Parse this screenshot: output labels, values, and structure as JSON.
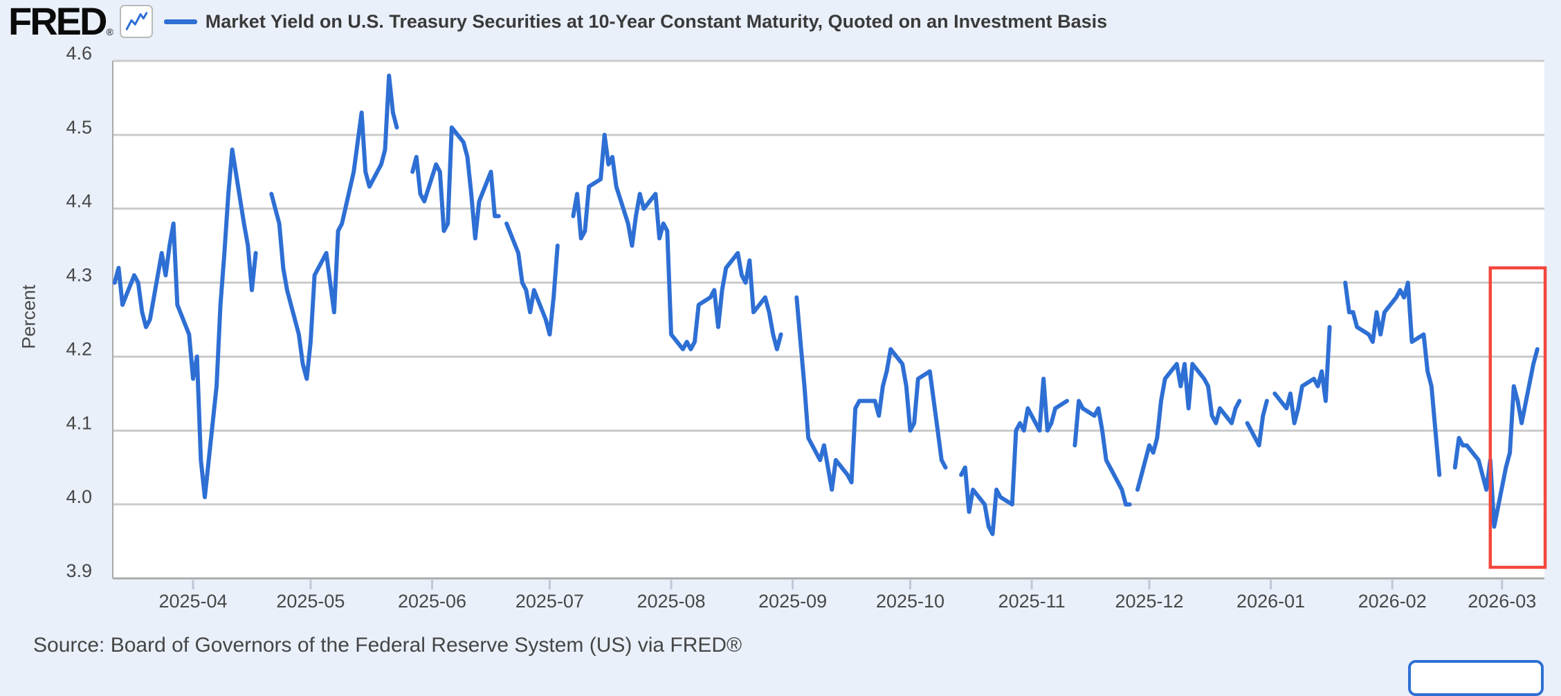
{
  "header": {
    "logo_text": "FRED",
    "registered_mark": "®",
    "series_title": "Market Yield on U.S. Treasury Securities at 10-Year Constant Maturity, Quoted on an Investment Basis"
  },
  "footer": {
    "source_text": "Source: Board of Governors of the Federal Reserve System (US) via FRED®"
  },
  "colors": {
    "page_background": "#eaf0fa",
    "plot_background": "#ffffff",
    "gridline": "#cbcbcb",
    "axis_line": "#ababab",
    "tick_mark": "#bfc8d8",
    "axis_text": "#474747",
    "series_line": "#2e6fd4",
    "highlight_red": "#f3473d"
  },
  "chart_data": {
    "type": "line",
    "title": "Market Yield on U.S. Treasury Securities at 10-Year Constant Maturity, Quoted on an Investment Basis",
    "xlabel": "",
    "ylabel": "Percent",
    "ylim": [
      3.9,
      4.6
    ],
    "yticks": [
      3.9,
      4.0,
      4.1,
      4.2,
      4.3,
      4.4,
      4.5,
      4.6
    ],
    "xtick_labels": [
      "2025-04",
      "2025-05",
      "2025-06",
      "2025-07",
      "2025-08",
      "2025-09",
      "2025-10",
      "2025-11",
      "2025-12",
      "2026-01",
      "2026-02",
      "2026-03"
    ],
    "grid": true,
    "legend_position": "top",
    "line_color": "#2e6fd4",
    "holiday_gap_dates": [
      "2025-04-18",
      "2025-05-26",
      "2025-06-19",
      "2025-07-04",
      "2025-09-01",
      "2025-10-13",
      "2025-11-11",
      "2025-11-27",
      "2025-12-25",
      "2026-01-01",
      "2026-01-19",
      "2026-02-16"
    ],
    "highlight_box": {
      "date_start": "2026-02-26",
      "date_end": "2026-03-12",
      "value_top": 4.32,
      "value_bottom": 3.915,
      "color": "#f3473d"
    },
    "series": [
      {
        "name": "Market Yield on U.S. Treasury Securities at 10-Year Constant Maturity, Quoted on an Investment Basis",
        "points": [
          [
            "2025-03-12",
            4.3
          ],
          [
            "2025-03-13",
            4.32
          ],
          [
            "2025-03-14",
            4.27
          ],
          [
            "2025-03-17",
            4.31
          ],
          [
            "2025-03-18",
            4.3
          ],
          [
            "2025-03-19",
            4.26
          ],
          [
            "2025-03-20",
            4.24
          ],
          [
            "2025-03-21",
            4.25
          ],
          [
            "2025-03-24",
            4.34
          ],
          [
            "2025-03-25",
            4.31
          ],
          [
            "2025-03-26",
            4.35
          ],
          [
            "2025-03-27",
            4.38
          ],
          [
            "2025-03-28",
            4.27
          ],
          [
            "2025-03-31",
            4.23
          ],
          [
            "2025-04-01",
            4.17
          ],
          [
            "2025-04-02",
            4.2
          ],
          [
            "2025-04-03",
            4.06
          ],
          [
            "2025-04-04",
            4.01
          ],
          [
            "2025-04-07",
            4.16
          ],
          [
            "2025-04-08",
            4.27
          ],
          [
            "2025-04-09",
            4.34
          ],
          [
            "2025-04-10",
            4.42
          ],
          [
            "2025-04-11",
            4.48
          ],
          [
            "2025-04-14",
            4.38
          ],
          [
            "2025-04-15",
            4.35
          ],
          [
            "2025-04-16",
            4.29
          ],
          [
            "2025-04-17",
            4.34
          ],
          [
            "2025-04-21",
            4.42
          ],
          [
            "2025-04-22",
            4.4
          ],
          [
            "2025-04-23",
            4.38
          ],
          [
            "2025-04-24",
            4.32
          ],
          [
            "2025-04-25",
            4.29
          ],
          [
            "2025-04-28",
            4.23
          ],
          [
            "2025-04-29",
            4.19
          ],
          [
            "2025-04-30",
            4.17
          ],
          [
            "2025-05-01",
            4.22
          ],
          [
            "2025-05-02",
            4.31
          ],
          [
            "2025-05-05",
            4.34
          ],
          [
            "2025-05-06",
            4.3
          ],
          [
            "2025-05-07",
            4.26
          ],
          [
            "2025-05-08",
            4.37
          ],
          [
            "2025-05-09",
            4.38
          ],
          [
            "2025-05-12",
            4.45
          ],
          [
            "2025-05-13",
            4.49
          ],
          [
            "2025-05-14",
            4.53
          ],
          [
            "2025-05-15",
            4.45
          ],
          [
            "2025-05-16",
            4.43
          ],
          [
            "2025-05-19",
            4.46
          ],
          [
            "2025-05-20",
            4.48
          ],
          [
            "2025-05-21",
            4.58
          ],
          [
            "2025-05-22",
            4.53
          ],
          [
            "2025-05-23",
            4.51
          ],
          [
            "2025-05-27",
            4.45
          ],
          [
            "2025-05-28",
            4.47
          ],
          [
            "2025-05-29",
            4.42
          ],
          [
            "2025-05-30",
            4.41
          ],
          [
            "2025-06-02",
            4.46
          ],
          [
            "2025-06-03",
            4.45
          ],
          [
            "2025-06-04",
            4.37
          ],
          [
            "2025-06-05",
            4.38
          ],
          [
            "2025-06-06",
            4.51
          ],
          [
            "2025-06-09",
            4.49
          ],
          [
            "2025-06-10",
            4.47
          ],
          [
            "2025-06-11",
            4.42
          ],
          [
            "2025-06-12",
            4.36
          ],
          [
            "2025-06-13",
            4.41
          ],
          [
            "2025-06-16",
            4.45
          ],
          [
            "2025-06-17",
            4.39
          ],
          [
            "2025-06-18",
            4.39
          ],
          [
            "2025-06-20",
            4.38
          ],
          [
            "2025-06-23",
            4.34
          ],
          [
            "2025-06-24",
            4.3
          ],
          [
            "2025-06-25",
            4.29
          ],
          [
            "2025-06-26",
            4.26
          ],
          [
            "2025-06-27",
            4.29
          ],
          [
            "2025-06-30",
            4.25
          ],
          [
            "2025-07-01",
            4.23
          ],
          [
            "2025-07-02",
            4.28
          ],
          [
            "2025-07-03",
            4.35
          ],
          [
            "2025-07-07",
            4.39
          ],
          [
            "2025-07-08",
            4.42
          ],
          [
            "2025-07-09",
            4.36
          ],
          [
            "2025-07-10",
            4.37
          ],
          [
            "2025-07-11",
            4.43
          ],
          [
            "2025-07-14",
            4.44
          ],
          [
            "2025-07-15",
            4.5
          ],
          [
            "2025-07-16",
            4.46
          ],
          [
            "2025-07-17",
            4.47
          ],
          [
            "2025-07-18",
            4.43
          ],
          [
            "2025-07-21",
            4.38
          ],
          [
            "2025-07-22",
            4.35
          ],
          [
            "2025-07-23",
            4.39
          ],
          [
            "2025-07-24",
            4.42
          ],
          [
            "2025-07-25",
            4.4
          ],
          [
            "2025-07-28",
            4.42
          ],
          [
            "2025-07-29",
            4.36
          ],
          [
            "2025-07-30",
            4.38
          ],
          [
            "2025-07-31",
            4.37
          ],
          [
            "2025-08-01",
            4.23
          ],
          [
            "2025-08-04",
            4.21
          ],
          [
            "2025-08-05",
            4.22
          ],
          [
            "2025-08-06",
            4.21
          ],
          [
            "2025-08-07",
            4.22
          ],
          [
            "2025-08-08",
            4.27
          ],
          [
            "2025-08-11",
            4.28
          ],
          [
            "2025-08-12",
            4.29
          ],
          [
            "2025-08-13",
            4.24
          ],
          [
            "2025-08-14",
            4.29
          ],
          [
            "2025-08-15",
            4.32
          ],
          [
            "2025-08-18",
            4.34
          ],
          [
            "2025-08-19",
            4.31
          ],
          [
            "2025-08-20",
            4.3
          ],
          [
            "2025-08-21",
            4.33
          ],
          [
            "2025-08-22",
            4.26
          ],
          [
            "2025-08-25",
            4.28
          ],
          [
            "2025-08-26",
            4.26
          ],
          [
            "2025-08-27",
            4.23
          ],
          [
            "2025-08-28",
            4.21
          ],
          [
            "2025-08-29",
            4.23
          ],
          [
            "2025-09-02",
            4.28
          ],
          [
            "2025-09-03",
            4.22
          ],
          [
            "2025-09-04",
            4.16
          ],
          [
            "2025-09-05",
            4.09
          ],
          [
            "2025-09-08",
            4.06
          ],
          [
            "2025-09-09",
            4.08
          ],
          [
            "2025-09-10",
            4.05
          ],
          [
            "2025-09-11",
            4.02
          ],
          [
            "2025-09-12",
            4.06
          ],
          [
            "2025-09-15",
            4.04
          ],
          [
            "2025-09-16",
            4.03
          ],
          [
            "2025-09-17",
            4.13
          ],
          [
            "2025-09-18",
            4.14
          ],
          [
            "2025-09-19",
            4.14
          ],
          [
            "2025-09-22",
            4.14
          ],
          [
            "2025-09-23",
            4.12
          ],
          [
            "2025-09-24",
            4.16
          ],
          [
            "2025-09-25",
            4.18
          ],
          [
            "2025-09-26",
            4.21
          ],
          [
            "2025-09-29",
            4.19
          ],
          [
            "2025-09-30",
            4.16
          ],
          [
            "2025-10-01",
            4.1
          ],
          [
            "2025-10-02",
            4.11
          ],
          [
            "2025-10-03",
            4.17
          ],
          [
            "2025-10-06",
            4.18
          ],
          [
            "2025-10-07",
            4.14
          ],
          [
            "2025-10-08",
            4.1
          ],
          [
            "2025-10-09",
            4.06
          ],
          [
            "2025-10-10",
            4.05
          ],
          [
            "2025-10-14",
            4.04
          ],
          [
            "2025-10-15",
            4.05
          ],
          [
            "2025-10-16",
            3.99
          ],
          [
            "2025-10-17",
            4.02
          ],
          [
            "2025-10-20",
            4.0
          ],
          [
            "2025-10-21",
            3.97
          ],
          [
            "2025-10-22",
            3.96
          ],
          [
            "2025-10-23",
            4.02
          ],
          [
            "2025-10-24",
            4.01
          ],
          [
            "2025-10-27",
            4.0
          ],
          [
            "2025-10-28",
            4.1
          ],
          [
            "2025-10-29",
            4.11
          ],
          [
            "2025-10-30",
            4.1
          ],
          [
            "2025-10-31",
            4.13
          ],
          [
            "2025-11-03",
            4.1
          ],
          [
            "2025-11-04",
            4.17
          ],
          [
            "2025-11-05",
            4.1
          ],
          [
            "2025-11-06",
            4.11
          ],
          [
            "2025-11-07",
            4.13
          ],
          [
            "2025-11-10",
            4.14
          ],
          [
            "2025-11-12",
            4.08
          ],
          [
            "2025-11-13",
            4.14
          ],
          [
            "2025-11-14",
            4.13
          ],
          [
            "2025-11-17",
            4.12
          ],
          [
            "2025-11-18",
            4.13
          ],
          [
            "2025-11-19",
            4.1
          ],
          [
            "2025-11-20",
            4.06
          ],
          [
            "2025-11-21",
            4.05
          ],
          [
            "2025-11-24",
            4.02
          ],
          [
            "2025-11-25",
            4.0
          ],
          [
            "2025-11-26",
            4.0
          ],
          [
            "2025-11-28",
            4.02
          ],
          [
            "2025-12-01",
            4.08
          ],
          [
            "2025-12-02",
            4.07
          ],
          [
            "2025-12-03",
            4.09
          ],
          [
            "2025-12-04",
            4.14
          ],
          [
            "2025-12-05",
            4.17
          ],
          [
            "2025-12-08",
            4.19
          ],
          [
            "2025-12-09",
            4.16
          ],
          [
            "2025-12-10",
            4.19
          ],
          [
            "2025-12-11",
            4.13
          ],
          [
            "2025-12-12",
            4.19
          ],
          [
            "2025-12-15",
            4.17
          ],
          [
            "2025-12-16",
            4.16
          ],
          [
            "2025-12-17",
            4.12
          ],
          [
            "2025-12-18",
            4.11
          ],
          [
            "2025-12-19",
            4.13
          ],
          [
            "2025-12-22",
            4.11
          ],
          [
            "2025-12-23",
            4.13
          ],
          [
            "2025-12-24",
            4.14
          ],
          [
            "2025-12-26",
            4.11
          ],
          [
            "2025-12-29",
            4.08
          ],
          [
            "2025-12-30",
            4.12
          ],
          [
            "2025-12-31",
            4.14
          ],
          [
            "2026-01-02",
            4.15
          ],
          [
            "2026-01-05",
            4.13
          ],
          [
            "2026-01-06",
            4.15
          ],
          [
            "2026-01-07",
            4.11
          ],
          [
            "2026-01-08",
            4.13
          ],
          [
            "2026-01-09",
            4.16
          ],
          [
            "2026-01-12",
            4.17
          ],
          [
            "2026-01-13",
            4.16
          ],
          [
            "2026-01-14",
            4.18
          ],
          [
            "2026-01-15",
            4.14
          ],
          [
            "2026-01-16",
            4.24
          ],
          [
            "2026-01-20",
            4.3
          ],
          [
            "2026-01-21",
            4.26
          ],
          [
            "2026-01-22",
            4.26
          ],
          [
            "2026-01-23",
            4.24
          ],
          [
            "2026-01-26",
            4.23
          ],
          [
            "2026-01-27",
            4.22
          ],
          [
            "2026-01-28",
            4.26
          ],
          [
            "2026-01-29",
            4.23
          ],
          [
            "2026-01-30",
            4.26
          ],
          [
            "2026-02-02",
            4.28
          ],
          [
            "2026-02-03",
            4.29
          ],
          [
            "2026-02-04",
            4.28
          ],
          [
            "2026-02-05",
            4.3
          ],
          [
            "2026-02-06",
            4.22
          ],
          [
            "2026-02-09",
            4.23
          ],
          [
            "2026-02-10",
            4.18
          ],
          [
            "2026-02-11",
            4.16
          ],
          [
            "2026-02-12",
            4.1
          ],
          [
            "2026-02-13",
            4.04
          ],
          [
            "2026-02-17",
            4.05
          ],
          [
            "2026-02-18",
            4.09
          ],
          [
            "2026-02-19",
            4.08
          ],
          [
            "2026-02-20",
            4.08
          ],
          [
            "2026-02-23",
            4.06
          ],
          [
            "2026-02-24",
            4.04
          ],
          [
            "2026-02-25",
            4.02
          ],
          [
            "2026-02-26",
            4.06
          ],
          [
            "2026-02-27",
            3.97
          ],
          [
            "2026-03-02",
            4.05
          ],
          [
            "2026-03-03",
            4.07
          ],
          [
            "2026-03-04",
            4.16
          ],
          [
            "2026-03-05",
            4.14
          ],
          [
            "2026-03-06",
            4.11
          ],
          [
            "2026-03-09",
            4.19
          ],
          [
            "2026-03-10",
            4.21
          ]
        ]
      }
    ]
  }
}
